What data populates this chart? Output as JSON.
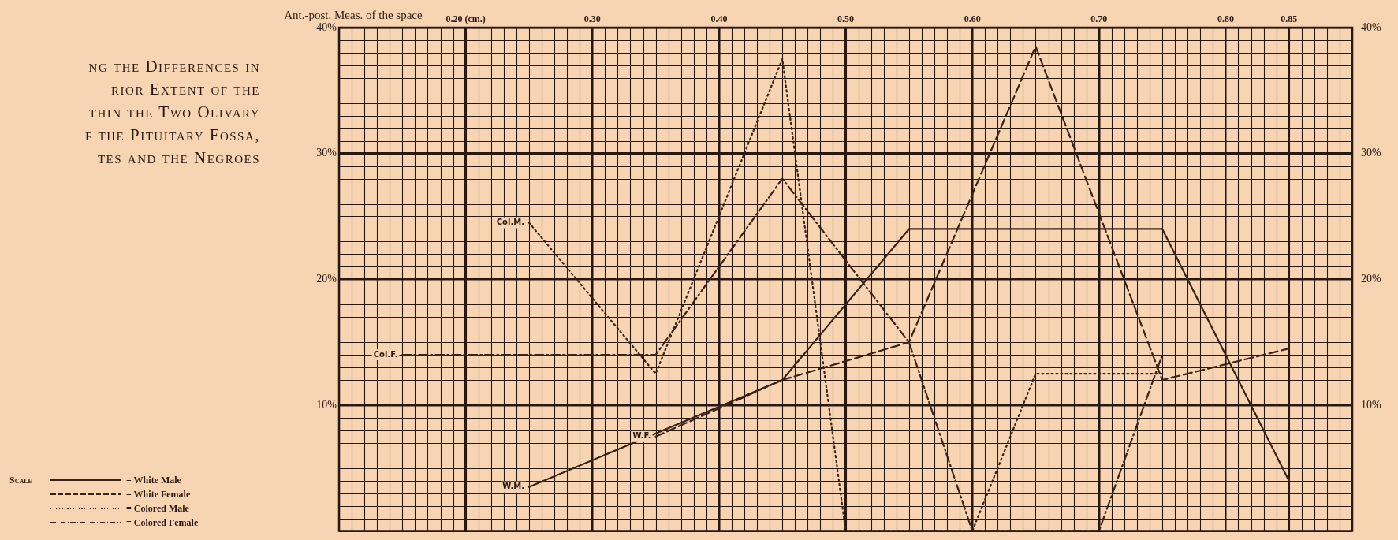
{
  "chart_data": {
    "type": "line",
    "title": "ng the Differences in\nrior Extent of the\nthin the Two Olivary\nf the Pituitary Fossa,\ntes and the Negroes",
    "xlabel": "Ant.-post. Meas. of the space",
    "legend_title": "Scale",
    "legend": "bottom left",
    "grid": true,
    "marker": "none",
    "xlim": [
      0.1,
      0.9
    ],
    "xticks": [
      {
        "value": 0.2,
        "label": "0.20 (cm.)"
      },
      {
        "value": 0.3,
        "label": "0.30"
      },
      {
        "value": 0.4,
        "label": "0.40"
      },
      {
        "value": 0.5,
        "label": "0.50"
      },
      {
        "value": 0.6,
        "label": "0.60"
      },
      {
        "value": 0.7,
        "label": "0.70"
      },
      {
        "value": 0.8,
        "label": "0.80"
      },
      {
        "value": 0.85,
        "label": "0.85"
      }
    ],
    "ylim": [
      0,
      40
    ],
    "yticks": [
      {
        "value": 10,
        "label": "10%"
      },
      {
        "value": 20,
        "label": "20%"
      },
      {
        "value": 30,
        "label": "30%"
      },
      {
        "value": 40,
        "label": "40%"
      }
    ],
    "y2lim": [
      0,
      40
    ],
    "y2ticks": [
      {
        "value": 10,
        "label": "10%"
      },
      {
        "value": 20,
        "label": "20%"
      },
      {
        "value": 30,
        "label": "30%"
      },
      {
        "value": 40,
        "label": "40%"
      }
    ],
    "series": [
      {
        "name": "= White Male",
        "color": "#3a2216",
        "line_style": "solid",
        "x": [
          0.25,
          0.45,
          0.55,
          0.75,
          0.85
        ],
        "values": [
          3.5,
          12,
          24,
          24,
          4
        ]
      },
      {
        "name": "= White Female",
        "color": "#3a2216",
        "line_style": "dashed",
        "x": [
          0.35,
          0.45,
          0.55,
          0.65,
          0.75,
          0.85
        ],
        "values": [
          7.5,
          12,
          15,
          38.5,
          12,
          14.5
        ]
      },
      {
        "name": "= Colored Male",
        "color": "#3a2216",
        "line_style": "dotted",
        "x": [
          0.25,
          0.35,
          0.45,
          0.5,
          0.6,
          0.65,
          0.75
        ],
        "values": [
          24.5,
          12.5,
          37.5,
          0,
          0,
          12.5,
          12.5
        ]
      },
      {
        "name": "= Colored Female",
        "color": "#3a2216",
        "line_style": "dashdot",
        "x": [
          0.15,
          0.35,
          0.45,
          0.55,
          0.6,
          0.7,
          0.75
        ],
        "values": [
          14,
          14,
          28,
          15,
          0,
          0,
          14
        ]
      }
    ],
    "annotations": [
      {
        "text": "W.M.",
        "x": 0.25,
        "y": 3.5
      },
      {
        "text": "W.F.",
        "x": 0.35,
        "y": 7.5
      },
      {
        "text": "Col.M.",
        "x": 0.25,
        "y": 24.5
      },
      {
        "text": "Col.F.",
        "x": 0.15,
        "y": 14
      }
    ]
  }
}
